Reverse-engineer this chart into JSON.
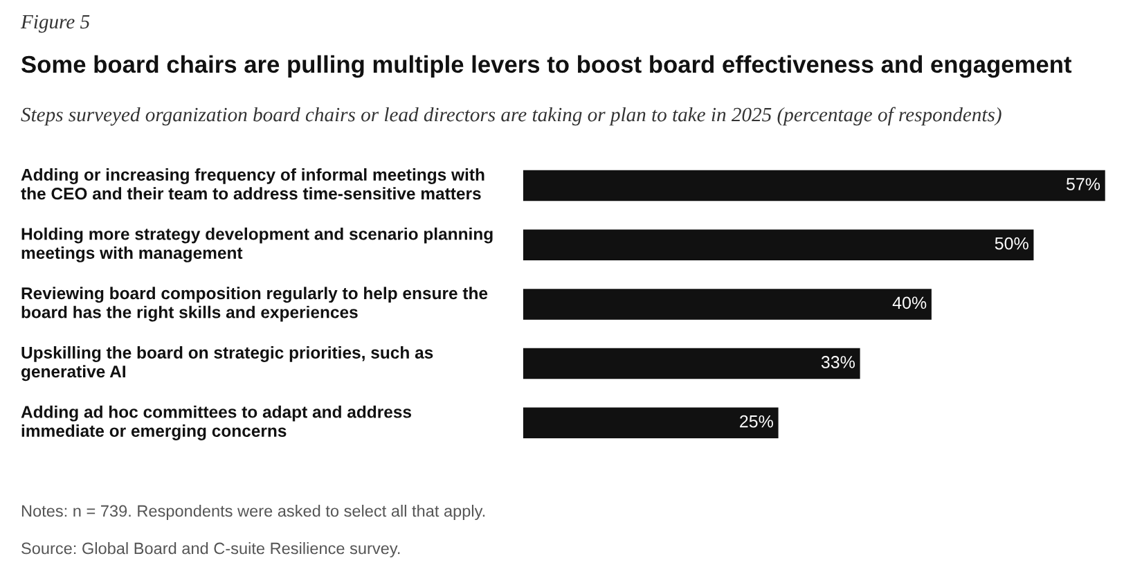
{
  "chart_data": {
    "type": "bar",
    "orientation": "horizontal",
    "title": "Some board chairs are pulling multiple levers to boost board effectiveness and engagement",
    "subtitle": "Steps surveyed organization board chairs or lead directors are taking or plan to take in 2025 (percentage of respondents)",
    "categories": [
      "Adding or increasing frequency of informal meetings with\nthe CEO and their team to address time-sensitive matters",
      "Holding more strategy development and scenario planning\nmeetings with management",
      "Reviewing board composition regularly to help ensure the\nboard has the right skills and experiences",
      "Upskilling the board on strategic priorities, such as\ngenerative AI",
      "Adding ad hoc committees to adapt and address\nimmediate or emerging concerns"
    ],
    "values": [
      57,
      50,
      40,
      33,
      25
    ],
    "value_labels": [
      "57%",
      "50%",
      "40%",
      "33%",
      "25%"
    ],
    "color": "#111111",
    "annotations": [
      "Figure 5",
      "Notes: n = 739. Respondents were asked to select all that apply.",
      "Source: Global Board and C-suite Resilience survey."
    ]
  }
}
